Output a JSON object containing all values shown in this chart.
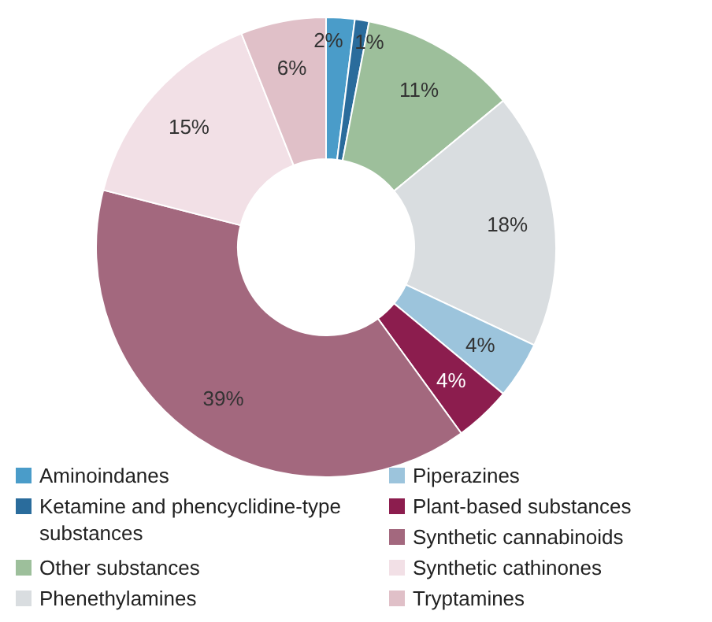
{
  "chart_data": {
    "type": "donut",
    "categories": [
      "Aminoindanes",
      "Ketamine and phencyclidine-type substances",
      "Other substances",
      "Phenethylamines",
      "Piperazines",
      "Plant-based substances",
      "Synthetic cannabinoids",
      "Synthetic cathinones",
      "Tryptamines"
    ],
    "values": [
      2,
      1,
      11,
      18,
      4,
      4,
      39,
      15,
      6
    ],
    "colors": [
      "#4a9cc9",
      "#2a6c9c",
      "#9dbf9b",
      "#d9dde0",
      "#9cc4dc",
      "#8c1d4e",
      "#a3687e",
      "#f2e0e6",
      "#e0c0c8"
    ],
    "value_labels": [
      "2%",
      "1%",
      "11%",
      "18%",
      "4%",
      "4%",
      "39%",
      "15%",
      "6%"
    ],
    "legend": "bottom"
  }
}
